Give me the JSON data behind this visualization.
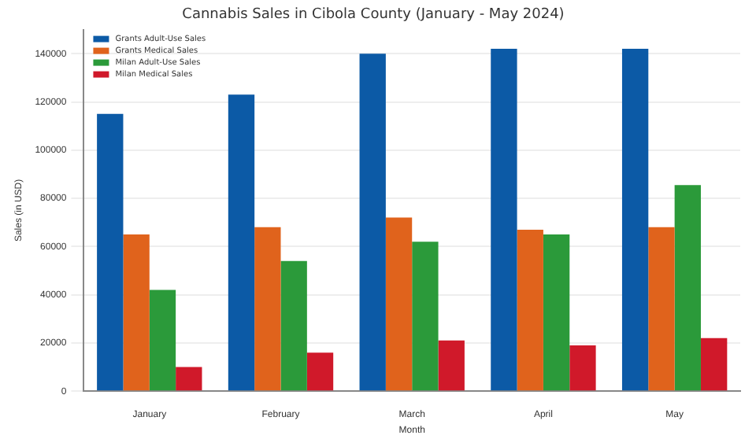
{
  "chart_data": {
    "type": "bar",
    "title": "Cannabis Sales in Cibola County (January - May 2024)",
    "xlabel": "Month",
    "ylabel": "Sales (in USD)",
    "categories": [
      "January",
      "February",
      "March",
      "April",
      "May"
    ],
    "series": [
      {
        "name": "Grants Adult-Use Sales",
        "color": "#0c5aa6",
        "values": [
          115000,
          123000,
          140000,
          142000,
          142000
        ]
      },
      {
        "name": "Grants Medical Sales",
        "color": "#e0631c",
        "values": [
          65000,
          68000,
          72000,
          67000,
          68000
        ]
      },
      {
        "name": "Milan Adult-Use Sales",
        "color": "#2b9a3a",
        "values": [
          42000,
          54000,
          62000,
          65000,
          85500
        ]
      },
      {
        "name": "Milan Medical Sales",
        "color": "#d0192a",
        "values": [
          10000,
          16000,
          21000,
          19000,
          22000
        ]
      }
    ],
    "ylim": [
      0,
      150000
    ],
    "yticks": [
      0,
      20000,
      40000,
      60000,
      80000,
      100000,
      120000,
      140000
    ],
    "grid": "y",
    "legend": "top left"
  }
}
